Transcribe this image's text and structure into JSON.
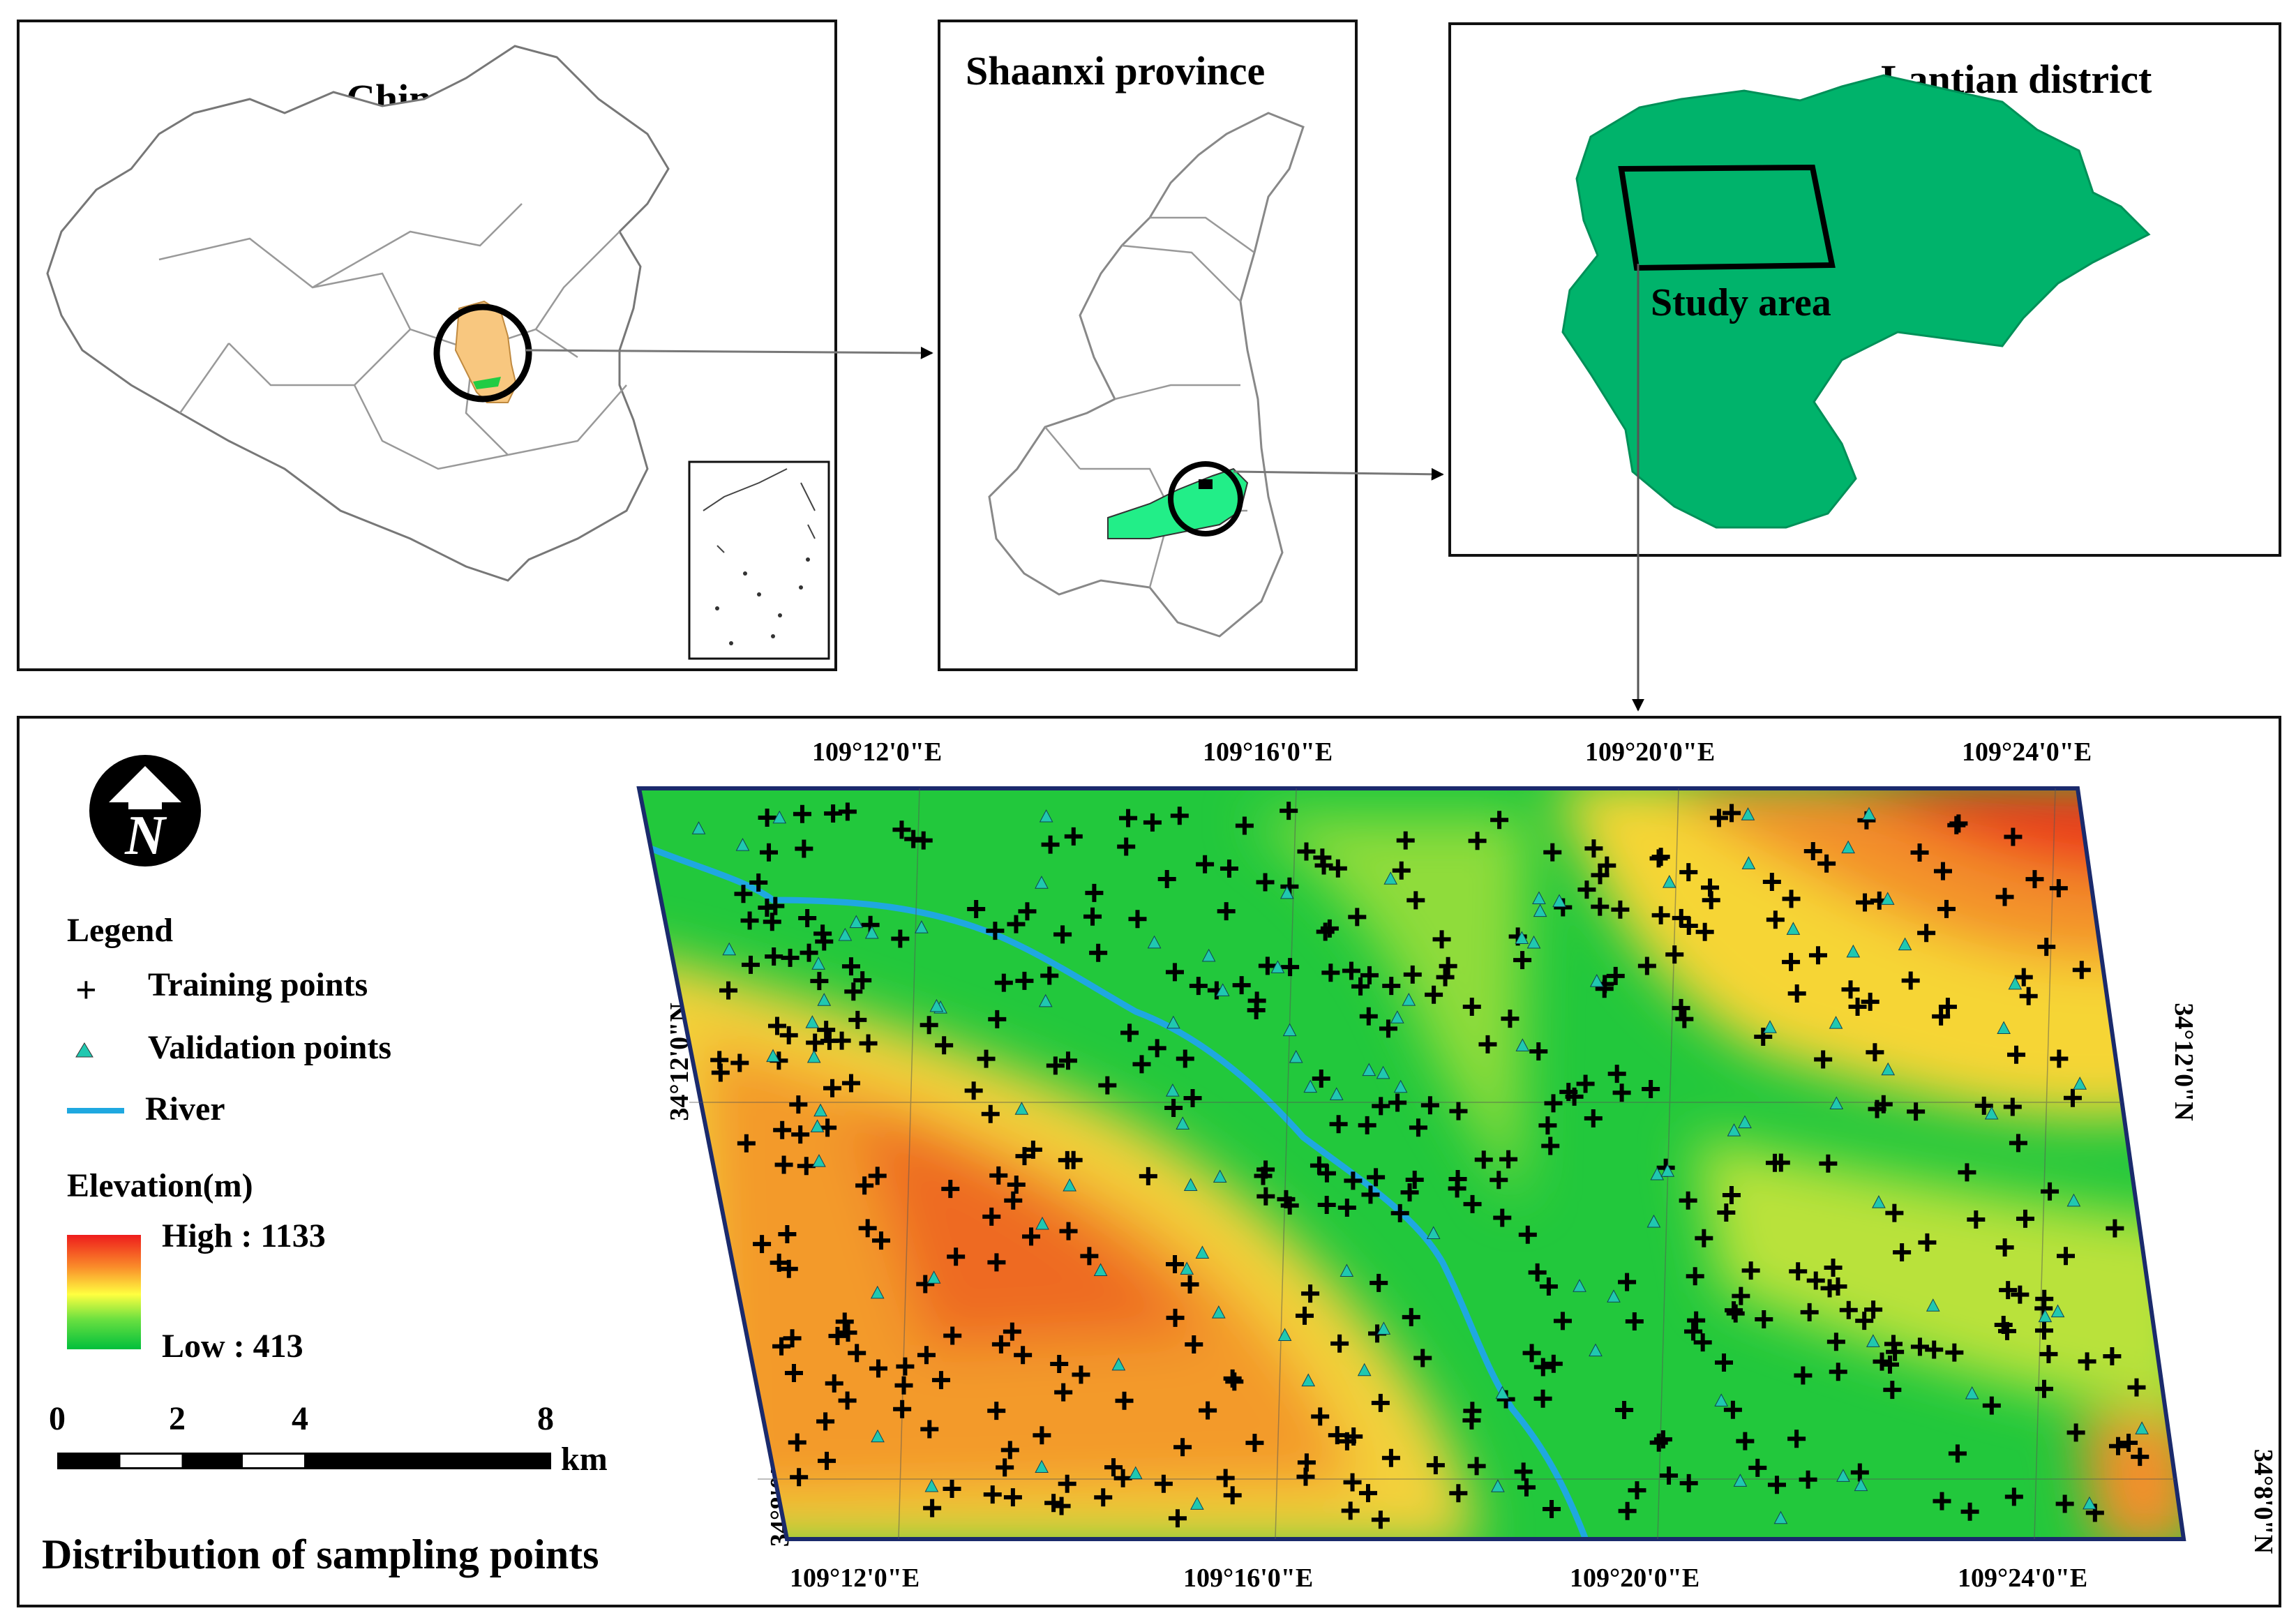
{
  "panels": {
    "china": {
      "title": "China"
    },
    "shaanxi": {
      "title": "Shaanxi province"
    },
    "lantian": {
      "title": "Lantian district",
      "study_area_label": "Study area"
    }
  },
  "main": {
    "title": "Distribution of sampling points",
    "north_label": "N",
    "legend": {
      "heading": "Legend",
      "training": "Training points",
      "validation": "Validation points",
      "river": "River",
      "elevation_heading": "Elevation(m)",
      "high": "High : 1133",
      "low": "Low : 413"
    },
    "scale_bar": {
      "ticks": [
        "0",
        "2",
        "4",
        "8"
      ],
      "unit": "km"
    },
    "longitude_ticks": [
      "109°12'0\"E",
      "109°16'0\"E",
      "109°20'0\"E",
      "109°24'0\"E"
    ],
    "latitude_ticks": [
      "34°12'0\"N",
      "34°8'0\"N"
    ]
  },
  "colors": {
    "district_fill": "#00b36b",
    "province_fill": "#f8c77f",
    "river": "#1fa8e0",
    "validation_marker": "#20c8b0",
    "elevation_high": "#ee1c1c",
    "elevation_mid": "#ffff40",
    "elevation_low": "#00bf3c"
  }
}
